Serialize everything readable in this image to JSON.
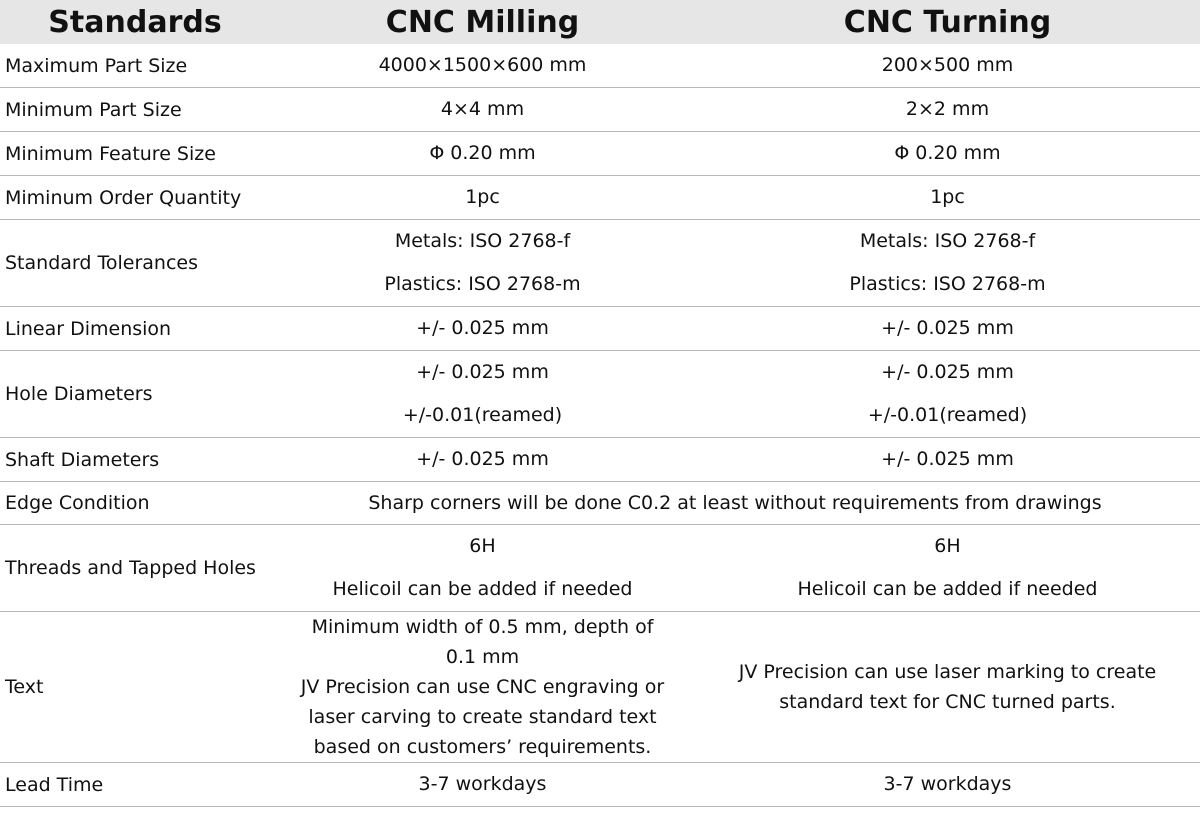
{
  "table": {
    "header": [
      "Standards",
      "CNC Milling",
      "CNC Turning"
    ],
    "rows": [
      [
        "Maximum Part Size",
        [
          "4000×1500×600 mm"
        ],
        [
          "200×500 mm"
        ]
      ],
      [
        "Minimum Part Size",
        [
          "4×4 mm"
        ],
        [
          "2×2 mm"
        ]
      ],
      [
        "Minimum Feature Size",
        [
          "Φ 0.20 mm"
        ],
        [
          "Φ 0.20 mm"
        ]
      ],
      [
        "Miminum Order Quantity",
        [
          "1pc"
        ],
        [
          "1pc"
        ]
      ],
      [
        "Standard Tolerances",
        [
          "Metals: ISO 2768-f",
          "Plastics: ISO 2768-m"
        ],
        [
          "Metals: ISO 2768-f",
          "Plastics: ISO 2768-m"
        ]
      ],
      [
        "Linear Dimension",
        [
          "+/- 0.025 mm"
        ],
        [
          "+/- 0.025 mm"
        ]
      ],
      [
        "Hole Diameters",
        [
          "+/- 0.025 mm",
          "+/-0.01(reamed)"
        ],
        [
          "+/- 0.025 mm",
          "+/-0.01(reamed)"
        ]
      ],
      [
        "Shaft Diameters",
        [
          "+/- 0.025 mm"
        ],
        [
          "+/- 0.025 mm"
        ]
      ],
      [
        "Edge Condition",
        [
          "Sharp corners will be done C0.2 at least without requirements from drawings"
        ]
      ],
      [
        "Threads and Tapped Holes",
        [
          "6H",
          "Helicoil can be added if needed"
        ],
        [
          "6H",
          "Helicoil can be added if needed"
        ]
      ],
      [
        "Text",
        [
          "Minimum width of 0.5 mm, depth of 0.1 mm",
          "JV Precision can use CNC engraving or laser carving to create standard text based on customers’ requirements."
        ],
        [
          "JV Precision can use laser marking to create standard text for CNC turned parts."
        ]
      ],
      [
        "Lead Time",
        [
          "3-7 workdays"
        ],
        [
          "3-7 workdays"
        ]
      ]
    ]
  }
}
